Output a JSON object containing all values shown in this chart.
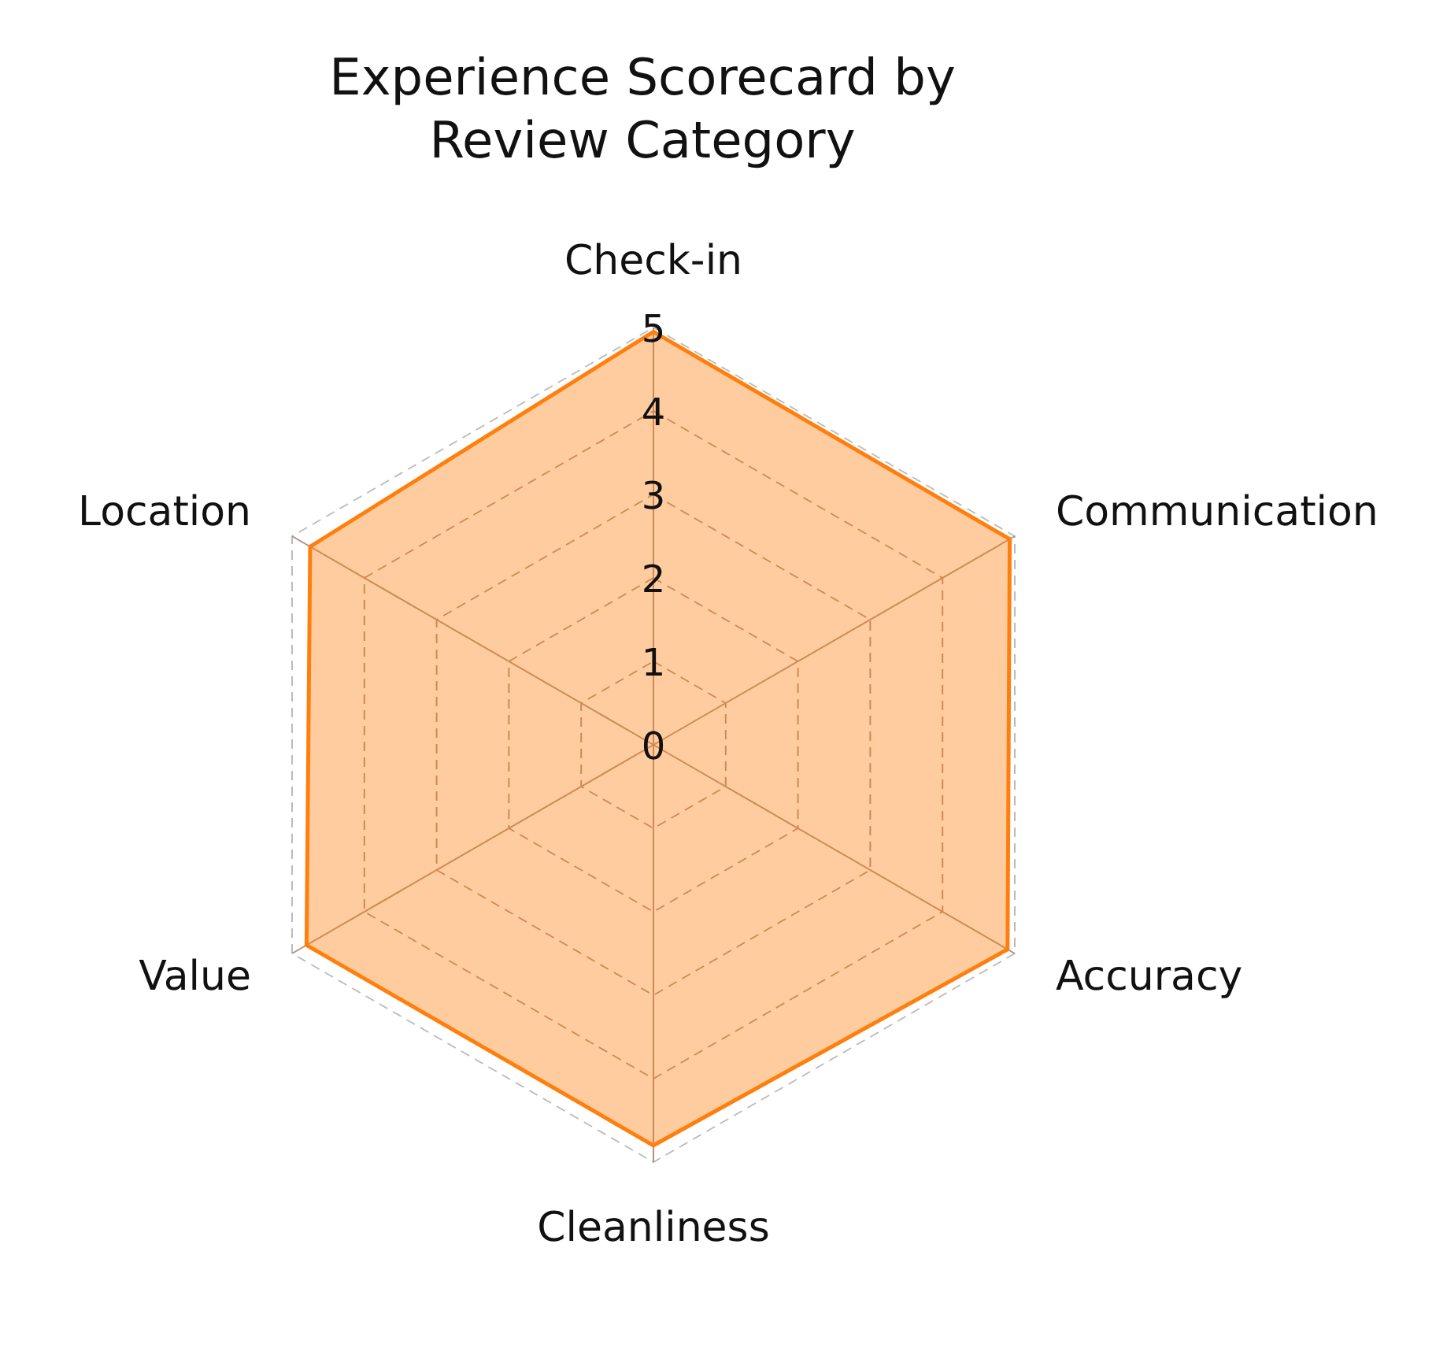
{
  "chart_data": {
    "type": "radar",
    "title": "Experience Scorecard by Review Category",
    "categories": [
      "Check-in",
      "Communication",
      "Accuracy",
      "Cleanliness",
      "Value",
      "Location"
    ],
    "series": [
      {
        "color": "#ff7f0e",
        "values": [
          4.95,
          4.93,
          4.9,
          4.8,
          4.8,
          4.75
        ]
      }
    ],
    "ylim": [
      0,
      5
    ],
    "yticks": [
      0,
      1,
      2,
      3,
      4,
      5
    ],
    "grid": true
  }
}
